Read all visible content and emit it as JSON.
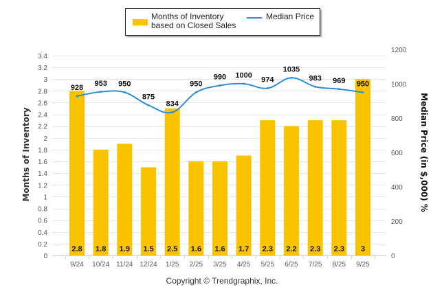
{
  "chart_data": {
    "type": "bar",
    "title": "",
    "categories": [
      "9/24",
      "10/24",
      "11/24",
      "12/24",
      "1/25",
      "2/25",
      "3/25",
      "4/25",
      "5/25",
      "6/25",
      "7/25",
      "8/25",
      "9/25"
    ],
    "series": [
      {
        "name": "Months of Inventory based on Closed Sales",
        "type": "bar",
        "axis": "left",
        "color": "#F9C300",
        "values": [
          2.8,
          1.8,
          1.9,
          1.5,
          2.5,
          1.6,
          1.6,
          1.7,
          2.3,
          2.2,
          2.3,
          2.3,
          3
        ],
        "labels": [
          "2.8",
          "1.8",
          "1.9",
          "1.5",
          "2.5",
          "1.6",
          "1.6",
          "1.7",
          "2.3",
          "2.2",
          "2.3",
          "2.3",
          "3"
        ]
      },
      {
        "name": "Median Price",
        "type": "line",
        "axis": "right",
        "color": "#2E8FD0",
        "values": [
          928,
          953,
          950,
          875,
          834,
          950,
          990,
          1000,
          974,
          1035,
          983,
          969,
          950
        ],
        "labels": [
          "928",
          "953",
          "950",
          "875",
          "834",
          "950",
          "990",
          "1000",
          "974",
          "1035",
          "983",
          "969",
          "950"
        ]
      }
    ],
    "ylabel": "Months of Inventory",
    "ylabel_right": "Median Price (in $,000) %",
    "xlabel": "",
    "ylim": [
      0,
      3.4
    ],
    "yticks": [
      "0",
      "0.2",
      "0.4",
      "0.6",
      "0.8",
      "1",
      "1.2",
      "1.4",
      "1.6",
      "1.8",
      "2",
      "2.2",
      "2.4",
      "2.6",
      "2.8",
      "3",
      "3.2",
      "3.4"
    ],
    "ylim_right": [
      0,
      1200
    ],
    "yticks_right": [
      "0",
      "200",
      "400",
      "600",
      "800",
      "1000",
      "1200"
    ],
    "grid": true,
    "legend": "top-center"
  },
  "legend": {
    "bar_label": "Months of Inventory based on Closed Sales",
    "line_label": "Median Price"
  },
  "footer": {
    "copyright": "Copyright © Trendgraphix, Inc."
  }
}
